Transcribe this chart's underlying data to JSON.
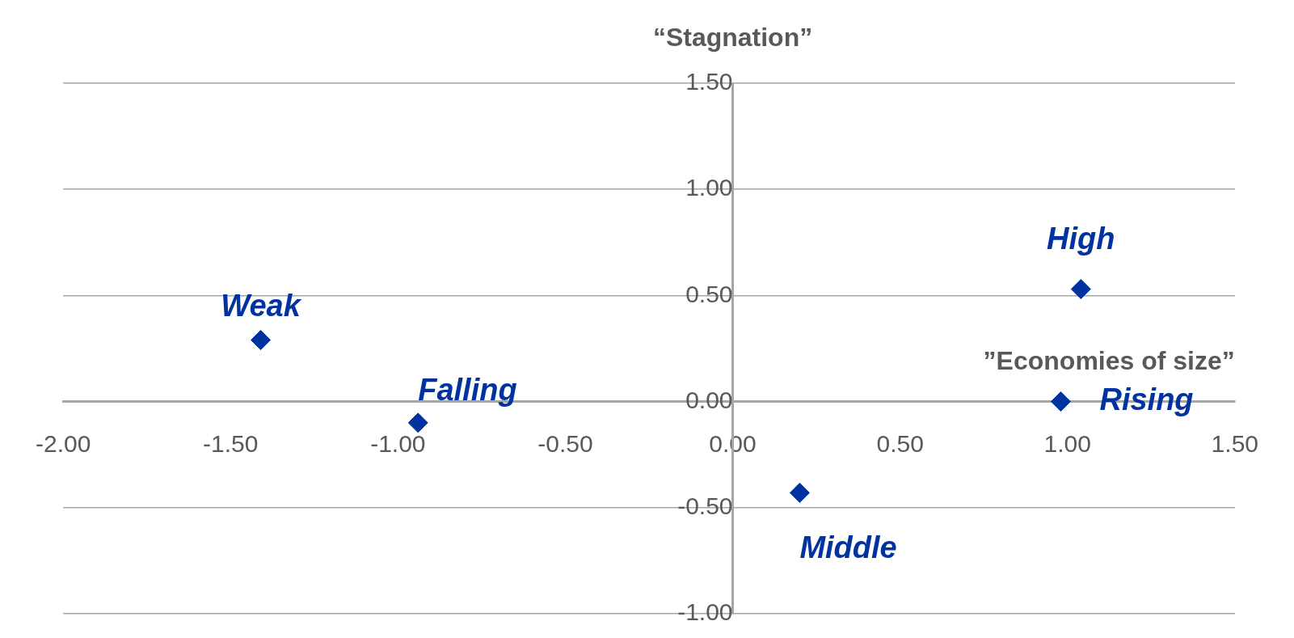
{
  "chart_data": {
    "type": "scatter",
    "xlabel": "”Economies of size”",
    "ylabel": "“Stagnation”",
    "x": [
      -1.41,
      -0.94,
      0.2,
      1.04,
      0.98
    ],
    "series": [
      {
        "color": "#0033a0",
        "values": [
          0.29,
          -0.1,
          -0.43,
          0.53,
          0.0
        ]
      }
    ],
    "marker": "diamond",
    "grid": "y",
    "legend": false,
    "xlim": [
      -2,
      1.5
    ],
    "ylim": [
      -1,
      1.5
    ],
    "xticks": [
      {
        "value": -2,
        "label": "-2.00"
      },
      {
        "value": -1.5,
        "label": "-1.50"
      },
      {
        "value": -1,
        "label": "-1.00"
      },
      {
        "value": -0.5,
        "label": "-0.50"
      },
      {
        "value": 0,
        "label": "0.00"
      },
      {
        "value": 0.5,
        "label": "0.50"
      },
      {
        "value": 1,
        "label": "1.00"
      },
      {
        "value": 1.5,
        "label": "1.50"
      }
    ],
    "yticks": [
      {
        "value": -1,
        "label": "-1.00"
      },
      {
        "value": -0.5,
        "label": "-0.50"
      },
      {
        "value": 0,
        "label": "0.00"
      },
      {
        "value": 0.5,
        "label": "0.50"
      },
      {
        "value": 1,
        "label": "1.00"
      },
      {
        "value": 1.5,
        "label": "1.50"
      }
    ],
    "annotations": [
      {
        "text": "Weak",
        "x": -1.41,
        "y": 0.29
      },
      {
        "text": "Falling",
        "x": -0.94,
        "y": -0.1
      },
      {
        "text": "Middle",
        "x": 0.2,
        "y": -0.43
      },
      {
        "text": "High",
        "x": 1.04,
        "y": 0.53
      },
      {
        "text": "Rising",
        "x": 0.98,
        "y": 0.0
      }
    ]
  }
}
